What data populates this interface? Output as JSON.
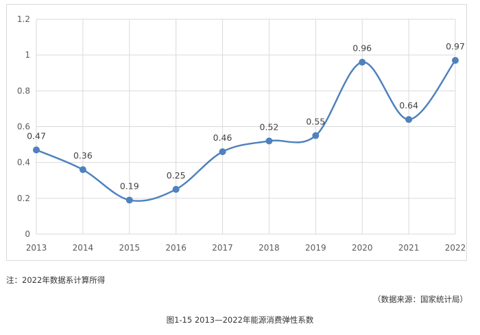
{
  "chart_data": {
    "type": "line",
    "x": [
      "2013",
      "2014",
      "2015",
      "2016",
      "2017",
      "2018",
      "2019",
      "2020",
      "2021",
      "2022"
    ],
    "series": [
      {
        "values": [
          0.47,
          0.36,
          0.19,
          0.25,
          0.46,
          0.52,
          0.55,
          0.96,
          0.64,
          0.97
        ]
      }
    ],
    "data_labels": [
      "0.47",
      "0.36",
      "0.19",
      "0.25",
      "0.46",
      "0.52",
      "0.55",
      "0.96",
      "0.64",
      "0.97"
    ],
    "y_ticks": [
      "0",
      "0.2",
      "0.4",
      "0.6",
      "0.8",
      "1",
      "1.2"
    ],
    "ylim": [
      0,
      1.2
    ],
    "grid": true,
    "smooth": true,
    "legend": "none",
    "line_color": "#4f81bd",
    "grid_color": "#d9d9d9"
  },
  "note": "注：2022年数据系计算所得",
  "source": "（数据来源：国家统计局）",
  "caption": "图1-15  2013—2022年能源消费弹性系数"
}
